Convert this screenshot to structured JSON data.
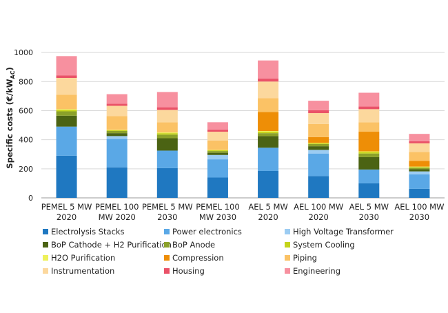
{
  "chart_data": {
    "type": "bar",
    "stacked": true,
    "title": "",
    "ylabel": "Specific costs (€/kW",
    "ylabel_subscript": "AC",
    "ylabel_suffix": ")",
    "xlabel": "",
    "ylim": [
      0,
      1100
    ],
    "yticks": [
      0,
      200,
      400,
      600,
      800,
      1000
    ],
    "grid": true,
    "legend_position": "bottom",
    "categories": [
      [
        "PEMEL 5 MW",
        "2020"
      ],
      [
        "PEMEL 100",
        "MW 2020"
      ],
      [
        "PEMEL 5 MW",
        "2030"
      ],
      [
        "PEMEL 100",
        "MW 2030"
      ],
      [
        "AEL 5 MW",
        "2020"
      ],
      [
        "AEL 100 MW",
        "2020"
      ],
      [
        "AEL 5 MW",
        "2030"
      ],
      [
        "AEL 100 MW",
        "2030"
      ]
    ],
    "series": [
      {
        "name": "Electrolysis Stacks",
        "color": "#1F78C1",
        "values": [
          290,
          210,
          205,
          140,
          185,
          150,
          100,
          62
        ]
      },
      {
        "name": "Power electronics",
        "color": "#5AA8E6",
        "values": [
          200,
          195,
          120,
          125,
          160,
          155,
          95,
          100
        ]
      },
      {
        "name": "High Voltage Transformer",
        "color": "#9CCCF2",
        "values": [
          0,
          20,
          0,
          30,
          0,
          25,
          0,
          20
        ]
      },
      {
        "name": "BoP Cathode + H2 Purification",
        "color": "#4B6313",
        "values": [
          75,
          20,
          85,
          15,
          80,
          25,
          85,
          15
        ]
      },
      {
        "name": "BoP Anode",
        "color": "#8BA12A",
        "values": [
          30,
          15,
          25,
          12,
          20,
          15,
          25,
          10
        ]
      },
      {
        "name": "System Cooling",
        "color": "#C4D41A",
        "values": [
          10,
          5,
          10,
          5,
          10,
          5,
          10,
          5
        ]
      },
      {
        "name": "H2O Purification",
        "color": "#EEF15A",
        "values": [
          5,
          3,
          5,
          3,
          5,
          3,
          5,
          3
        ]
      },
      {
        "name": "Compression",
        "color": "#EE8E06",
        "values": [
          0,
          0,
          0,
          0,
          130,
          40,
          135,
          40
        ]
      },
      {
        "name": "Piping",
        "color": "#FBC265",
        "values": [
          100,
          95,
          70,
          65,
          95,
          90,
          65,
          60
        ]
      },
      {
        "name": "Instrumentation",
        "color": "#FCD89D",
        "values": [
          115,
          70,
          85,
          60,
          115,
          75,
          90,
          60
        ]
      },
      {
        "name": "Housing",
        "color": "#EA5268",
        "values": [
          18,
          15,
          18,
          15,
          20,
          20,
          18,
          15
        ]
      },
      {
        "name": "Engineering",
        "color": "#F7909F",
        "values": [
          132,
          65,
          105,
          50,
          125,
          65,
          95,
          50
        ]
      }
    ]
  }
}
